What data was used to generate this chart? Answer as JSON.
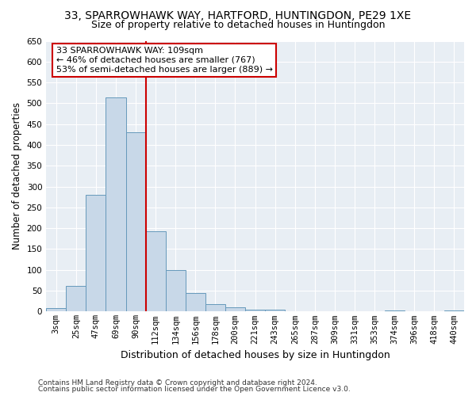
{
  "title": "33, SPARROWHAWK WAY, HARTFORD, HUNTINGDON, PE29 1XE",
  "subtitle": "Size of property relative to detached houses in Huntingdon",
  "xlabel": "Distribution of detached houses by size in Huntingdon",
  "ylabel": "Number of detached properties",
  "footnote1": "Contains HM Land Registry data © Crown copyright and database right 2024.",
  "footnote2": "Contains public sector information licensed under the Open Government Licence v3.0.",
  "categories": [
    "3sqm",
    "25sqm",
    "47sqm",
    "69sqm",
    "90sqm",
    "112sqm",
    "134sqm",
    "156sqm",
    "178sqm",
    "200sqm",
    "221sqm",
    "243sqm",
    "265sqm",
    "287sqm",
    "309sqm",
    "331sqm",
    "353sqm",
    "374sqm",
    "396sqm",
    "418sqm",
    "440sqm"
  ],
  "values": [
    8,
    62,
    280,
    515,
    430,
    192,
    100,
    45,
    18,
    11,
    4,
    5,
    0,
    0,
    0,
    0,
    0,
    3,
    0,
    0,
    3
  ],
  "bar_color": "#c8d8e8",
  "bar_edge_color": "#6699bb",
  "vline_x_index": 4,
  "vline_color": "#cc0000",
  "annotation_text": "33 SPARROWHAWK WAY: 109sqm\n← 46% of detached houses are smaller (767)\n53% of semi-detached houses are larger (889) →",
  "annotation_box_color": "#ffffff",
  "annotation_box_edge_color": "#cc0000",
  "ylim": [
    0,
    650
  ],
  "yticks": [
    0,
    50,
    100,
    150,
    200,
    250,
    300,
    350,
    400,
    450,
    500,
    550,
    600,
    650
  ],
  "bg_color": "#e8eef4",
  "grid_color": "#ffffff",
  "title_fontsize": 10,
  "subtitle_fontsize": 9,
  "annotation_fontsize": 8,
  "tick_fontsize": 7.5,
  "ylabel_fontsize": 8.5,
  "xlabel_fontsize": 9
}
